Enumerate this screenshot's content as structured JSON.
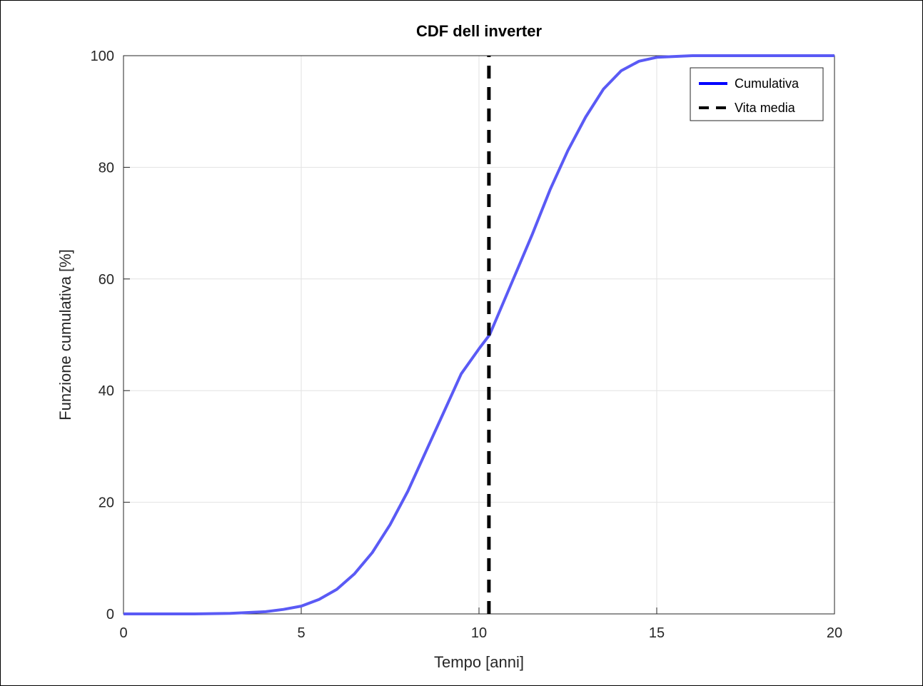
{
  "chart_data": {
    "type": "line",
    "title": "CDF dell inverter",
    "xlabel": "Tempo [anni]",
    "ylabel": "Funzione cumulativa [%]",
    "xlim": [
      0,
      20
    ],
    "ylim": [
      0,
      100
    ],
    "xticks": [
      0,
      5,
      10,
      15,
      20
    ],
    "yticks": [
      0,
      20,
      40,
      60,
      80,
      100
    ],
    "grid": true,
    "legend_position": "top-right",
    "series": [
      {
        "name": "Cumulativa",
        "color": "#5a5af5",
        "style": "solid",
        "x": [
          0,
          1,
          2,
          3,
          4,
          4.5,
          5,
          5.5,
          6,
          6.5,
          7,
          7.5,
          8,
          8.5,
          9,
          9.5,
          10,
          10.3,
          10.5,
          11,
          11.5,
          12,
          12.5,
          13,
          13.5,
          14,
          14.5,
          15,
          16,
          17,
          18,
          19,
          20
        ],
        "values": [
          0,
          0,
          0,
          0.1,
          0.4,
          0.8,
          1.4,
          2.6,
          4.4,
          7.2,
          11,
          16,
          22,
          29,
          36,
          43,
          47.5,
          50,
          53,
          60.5,
          68,
          76,
          83,
          89,
          94,
          97.3,
          99,
          99.7,
          100,
          100,
          100,
          100,
          100
        ]
      },
      {
        "name": "Vita media",
        "color": "#000000",
        "style": "dashed",
        "x": [
          10.28,
          10.28
        ],
        "values": [
          0,
          100
        ]
      }
    ]
  }
}
